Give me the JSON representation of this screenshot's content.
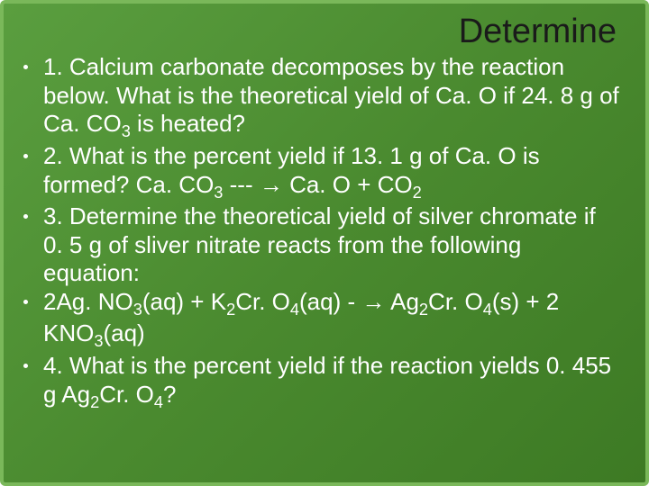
{
  "slide": {
    "title": "Determine",
    "background_gradient": [
      "#5a9e3f",
      "#4a8a2f",
      "#3d7a24"
    ],
    "border_color": "#7ab85a",
    "title_color": "#1a1a1a",
    "title_fontsize": 38,
    "text_color": "#ffffff",
    "body_fontsize": 26,
    "bullets": [
      {
        "text": "1. Calcium carbonate decomposes by the reaction below. What is the theoretical yield of Ca. O if 24. 8 g of Ca. CO",
        "sub1": "3",
        "tail": " is heated?"
      },
      {
        "text": "2.  What is the percent yield if 13. 1 g of Ca. O is formed?    Ca. CO",
        "sub1": "3",
        "mid": " --- → Ca. O + CO",
        "sub2": "2",
        "tail": ""
      },
      {
        "text": "3. Determine the theoretical yield of silver chromate if 0. 5 g of sliver nitrate reacts from the following equation:"
      },
      {
        "text": "2Ag. NO",
        "sub1": "3",
        "mid1": "(aq) + K",
        "sub2": "2",
        "mid2": "Cr. O",
        "sub3": "4",
        "mid3": "(aq) - → Ag",
        "sub4": "2",
        "mid4": "Cr. O",
        "sub5": "4",
        "mid5": "(s) + 2 KNO",
        "sub6": "3",
        "tail": "(aq)"
      },
      {
        "text": "4. What is the percent yield if the reaction yields 0. 455 g Ag",
        "sub1": "2",
        "mid": "Cr. O",
        "sub2": "4",
        "tail": "?"
      }
    ]
  }
}
